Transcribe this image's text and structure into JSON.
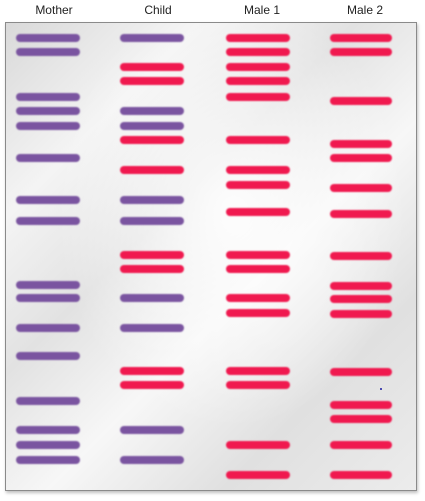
{
  "lanes": [
    {
      "label": "Mother"
    },
    {
      "label": "Child"
    },
    {
      "label": "Male 1"
    },
    {
      "label": "Male 2"
    }
  ],
  "colors": {
    "mother_band": "#7a54a0",
    "red_band": "#f0194f"
  }
}
